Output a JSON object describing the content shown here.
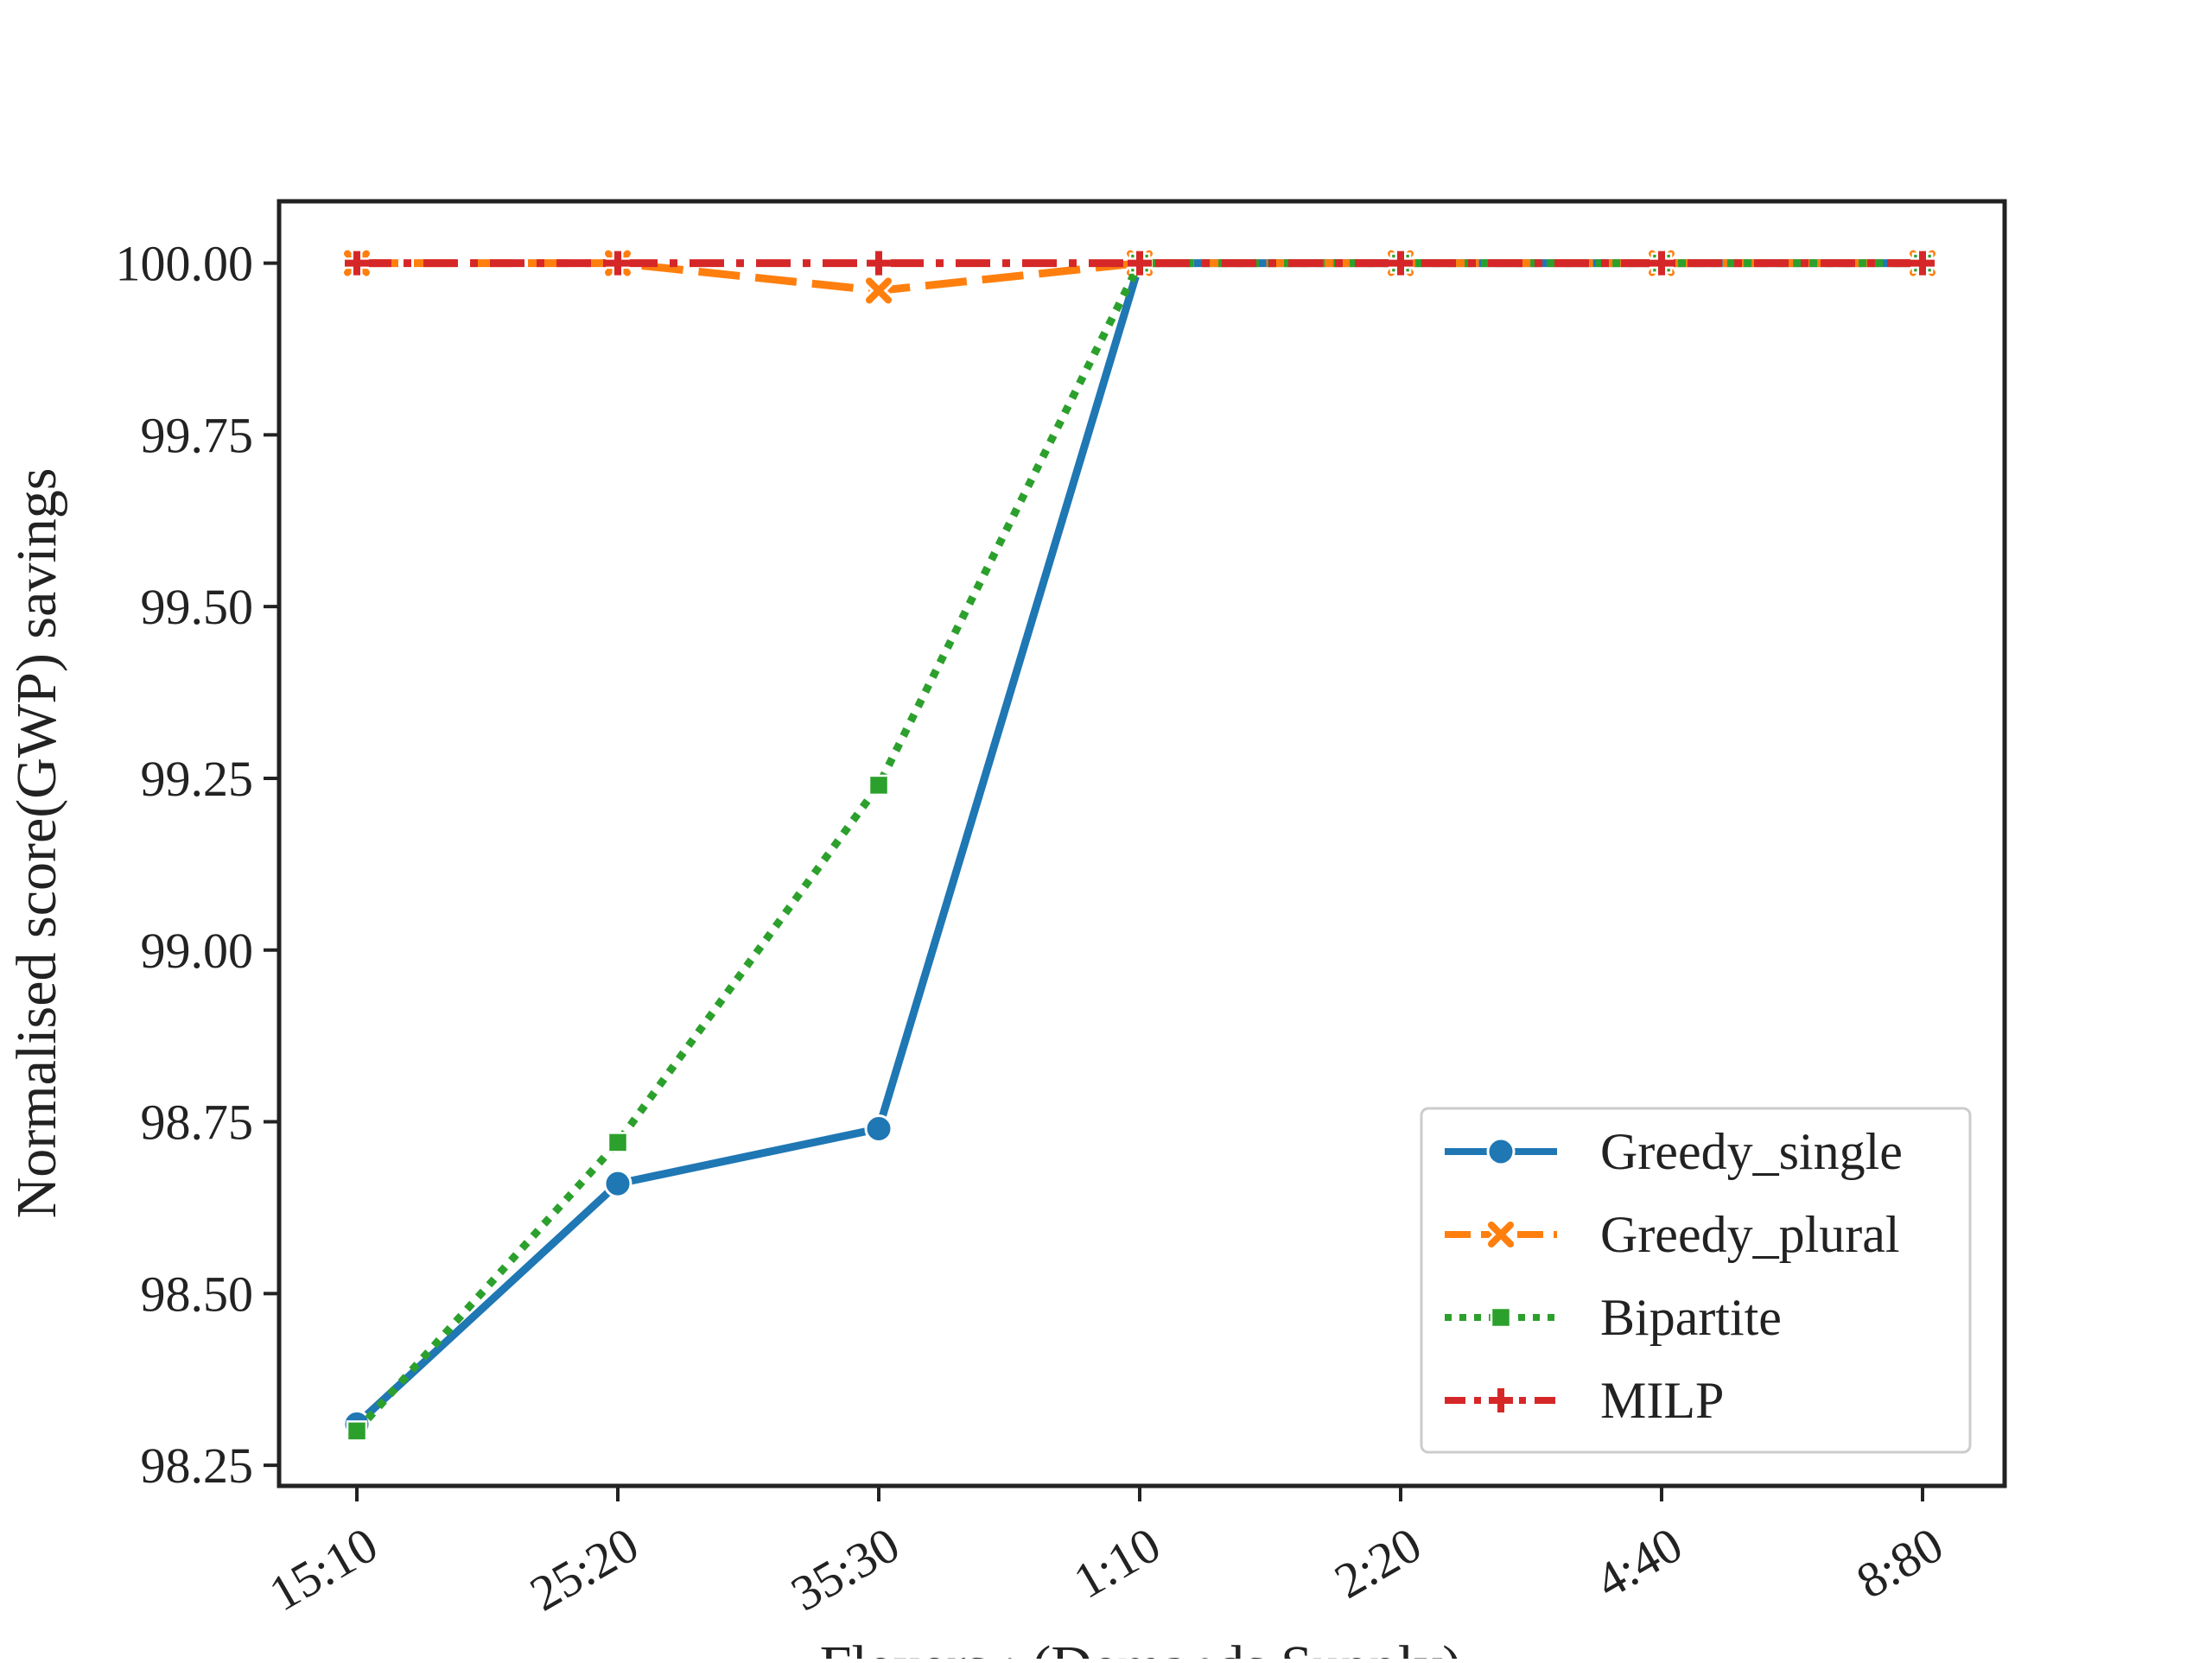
{
  "chart_data": {
    "type": "line",
    "title": "",
    "xlabel": "Flexers : (Demands,Supply)",
    "ylabel": "Normalised score(GWP) savings",
    "categories": [
      "15:10",
      "25:20",
      "35:30",
      "1:10",
      "2:20",
      "4:40",
      "8:80"
    ],
    "yticks": [
      "98.25",
      "98.50",
      "98.75",
      "99.00",
      "99.25",
      "99.50",
      "99.75",
      "100.00"
    ],
    "ylim": [
      98.22,
      100.09
    ],
    "grid": false,
    "legend_position": "lower right",
    "series": [
      {
        "name": "Greedy_single",
        "values": [
          98.31,
          98.66,
          98.74,
          100.0,
          100.0,
          100.0,
          100.0
        ],
        "color": "#1f77b4",
        "line_style": "solid",
        "marker": "circle"
      },
      {
        "name": "Greedy_plural",
        "values": [
          100.0,
          100.0,
          99.96,
          100.0,
          100.0,
          100.0,
          100.0
        ],
        "color": "#ff7f0e",
        "line_style": "dashed",
        "marker": "x"
      },
      {
        "name": "Bipartite",
        "values": [
          98.3,
          98.72,
          99.24,
          100.0,
          100.0,
          100.0,
          100.0
        ],
        "color": "#2ca02c",
        "line_style": "dotted",
        "marker": "square"
      },
      {
        "name": "MILP",
        "values": [
          100.0,
          100.0,
          100.0,
          100.0,
          100.0,
          100.0,
          100.0
        ],
        "color": "#d62728",
        "line_style": "dashdot",
        "marker": "plus"
      }
    ]
  }
}
